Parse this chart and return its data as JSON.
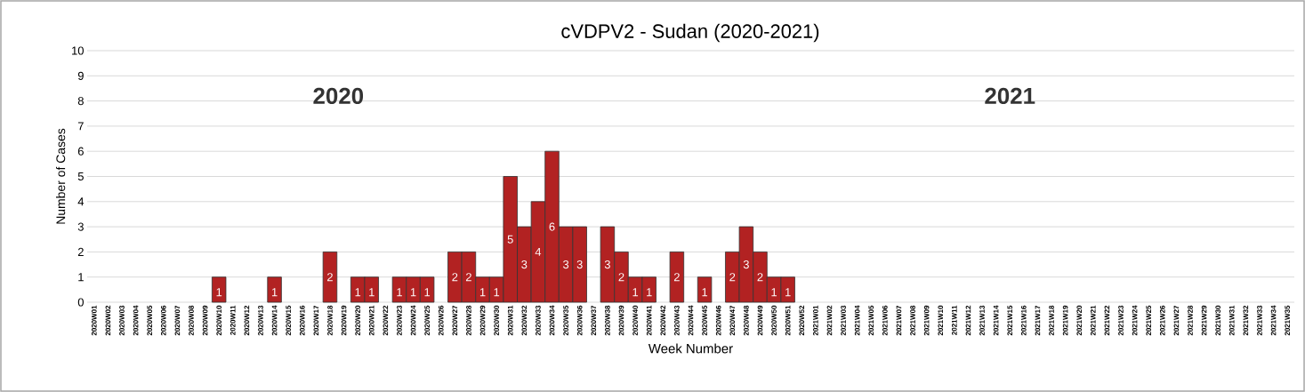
{
  "chart_data": {
    "type": "bar",
    "title": "cVDPV2 - Sudan (2020-2021)",
    "xlabel": "Week Number",
    "ylabel": "Number of Cases",
    "categories": [
      "2020W01",
      "2020W02",
      "2020W03",
      "2020W04",
      "2020W05",
      "2020W06",
      "2020W07",
      "2020W08",
      "2020W09",
      "2020W10",
      "2020W11",
      "2020W12",
      "2020W13",
      "2020W14",
      "2020W15",
      "2020W16",
      "2020W17",
      "2020W18",
      "2020W19",
      "2020W20",
      "2020W21",
      "2020W22",
      "2020W23",
      "2020W24",
      "2020W25",
      "2020W26",
      "2020W27",
      "2020W28",
      "2020W29",
      "2020W30",
      "2020W31",
      "2020W32",
      "2020W33",
      "2020W34",
      "2020W35",
      "2020W36",
      "2020W37",
      "2020W38",
      "2020W39",
      "2020W40",
      "2020W41",
      "2020W42",
      "2020W43",
      "2020W44",
      "2020W45",
      "2020W46",
      "2020W47",
      "2020W48",
      "2020W49",
      "2020W50",
      "2020W51",
      "2020W52",
      "2021W01",
      "2021W02",
      "2021W03",
      "2021W04",
      "2021W05",
      "2021W06",
      "2021W07",
      "2021W08",
      "2021W09",
      "2021W10",
      "2021W11",
      "2021W12",
      "2021W13",
      "2021W14",
      "2021W15",
      "2021W16",
      "2021W17",
      "2021W18",
      "2021W19",
      "2021W20",
      "2021W21",
      "2021W22",
      "2021W23",
      "2021W24",
      "2021W25",
      "2021W26",
      "2021W27",
      "2021W28",
      "2021W29",
      "2021W30",
      "2021W31",
      "2021W32",
      "2021W33",
      "2021W34",
      "2021W35"
    ],
    "values": [
      0,
      0,
      0,
      0,
      0,
      0,
      0,
      0,
      0,
      1,
      0,
      0,
      0,
      1,
      0,
      0,
      0,
      2,
      0,
      1,
      1,
      0,
      1,
      1,
      1,
      0,
      2,
      2,
      1,
      1,
      5,
      3,
      4,
      6,
      3,
      3,
      0,
      3,
      2,
      1,
      1,
      0,
      2,
      0,
      1,
      0,
      2,
      3,
      2,
      1,
      1,
      0,
      0,
      0,
      0,
      0,
      0,
      0,
      0,
      0,
      0,
      0,
      0,
      0,
      0,
      0,
      0,
      0,
      0,
      0,
      0,
      0,
      0,
      0,
      0,
      0,
      0,
      0,
      0,
      0,
      0,
      0,
      0,
      0,
      0,
      0,
      0
    ],
    "value_labels": [
      null,
      null,
      null,
      null,
      null,
      null,
      null,
      null,
      null,
      "1",
      null,
      null,
      null,
      "1",
      null,
      null,
      null,
      "2",
      null,
      "1",
      "1",
      null,
      "1",
      "1",
      "1",
      null,
      "2",
      "2",
      "1",
      "1",
      "5",
      "3",
      "4",
      "6",
      "3",
      "3",
      null,
      "3",
      "2",
      "1",
      "1",
      null,
      "2",
      null,
      "1",
      null,
      "2",
      "3",
      "2",
      "1",
      "1",
      null,
      null,
      null,
      null,
      null,
      null,
      null,
      null,
      null,
      null,
      null,
      null,
      null,
      null,
      null,
      null,
      null,
      null,
      null,
      null,
      null,
      null,
      null,
      null,
      null,
      null,
      null,
      null,
      null,
      null,
      null,
      null,
      null,
      null,
      null,
      null
    ],
    "color": "#b22222",
    "ylim": [
      0,
      10
    ],
    "yticks": [
      0,
      1,
      2,
      3,
      4,
      5,
      6,
      7,
      8,
      9,
      10
    ],
    "grid": "y",
    "annotations": [
      "2020",
      "2021"
    ]
  }
}
